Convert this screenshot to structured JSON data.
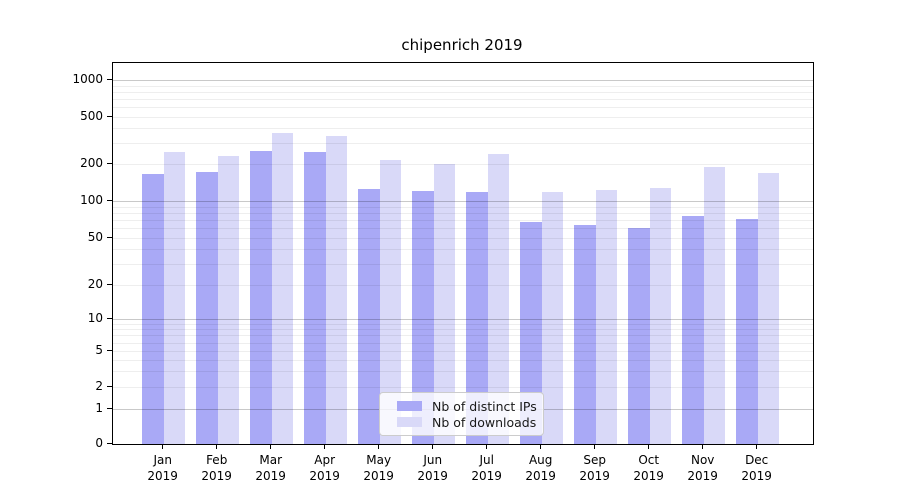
{
  "chart_data": {
    "type": "bar",
    "title": "chipenrich 2019",
    "categories": [
      "Jan",
      "Feb",
      "Mar",
      "Apr",
      "May",
      "Jun",
      "Jul",
      "Aug",
      "Sep",
      "Oct",
      "Nov",
      "Dec"
    ],
    "year_label": "2019",
    "series": [
      {
        "name": "Nb of distinct IPs",
        "color": "#a9a9f6",
        "values": [
          165,
          173,
          260,
          255,
          125,
          120,
          118,
          68,
          64,
          60,
          75,
          71
        ]
      },
      {
        "name": "Nb of downloads",
        "color": "#d9d9f8",
        "values": [
          253,
          232,
          369,
          345,
          218,
          200,
          242,
          119,
          122,
          127,
          190,
          170
        ]
      }
    ],
    "yticks": [
      0,
      1,
      2,
      5,
      10,
      20,
      50,
      100,
      200,
      500,
      1000
    ],
    "yscale": "symlog",
    "ylim": [
      0,
      1400
    ],
    "xlabel": "",
    "ylabel": "",
    "grid": true,
    "legend_position": "lower center"
  },
  "colors": {
    "grid_major": "#c9c9c9",
    "grid_minor": "#ededed",
    "axis": "#000000",
    "legend_border": "#cccccc"
  }
}
